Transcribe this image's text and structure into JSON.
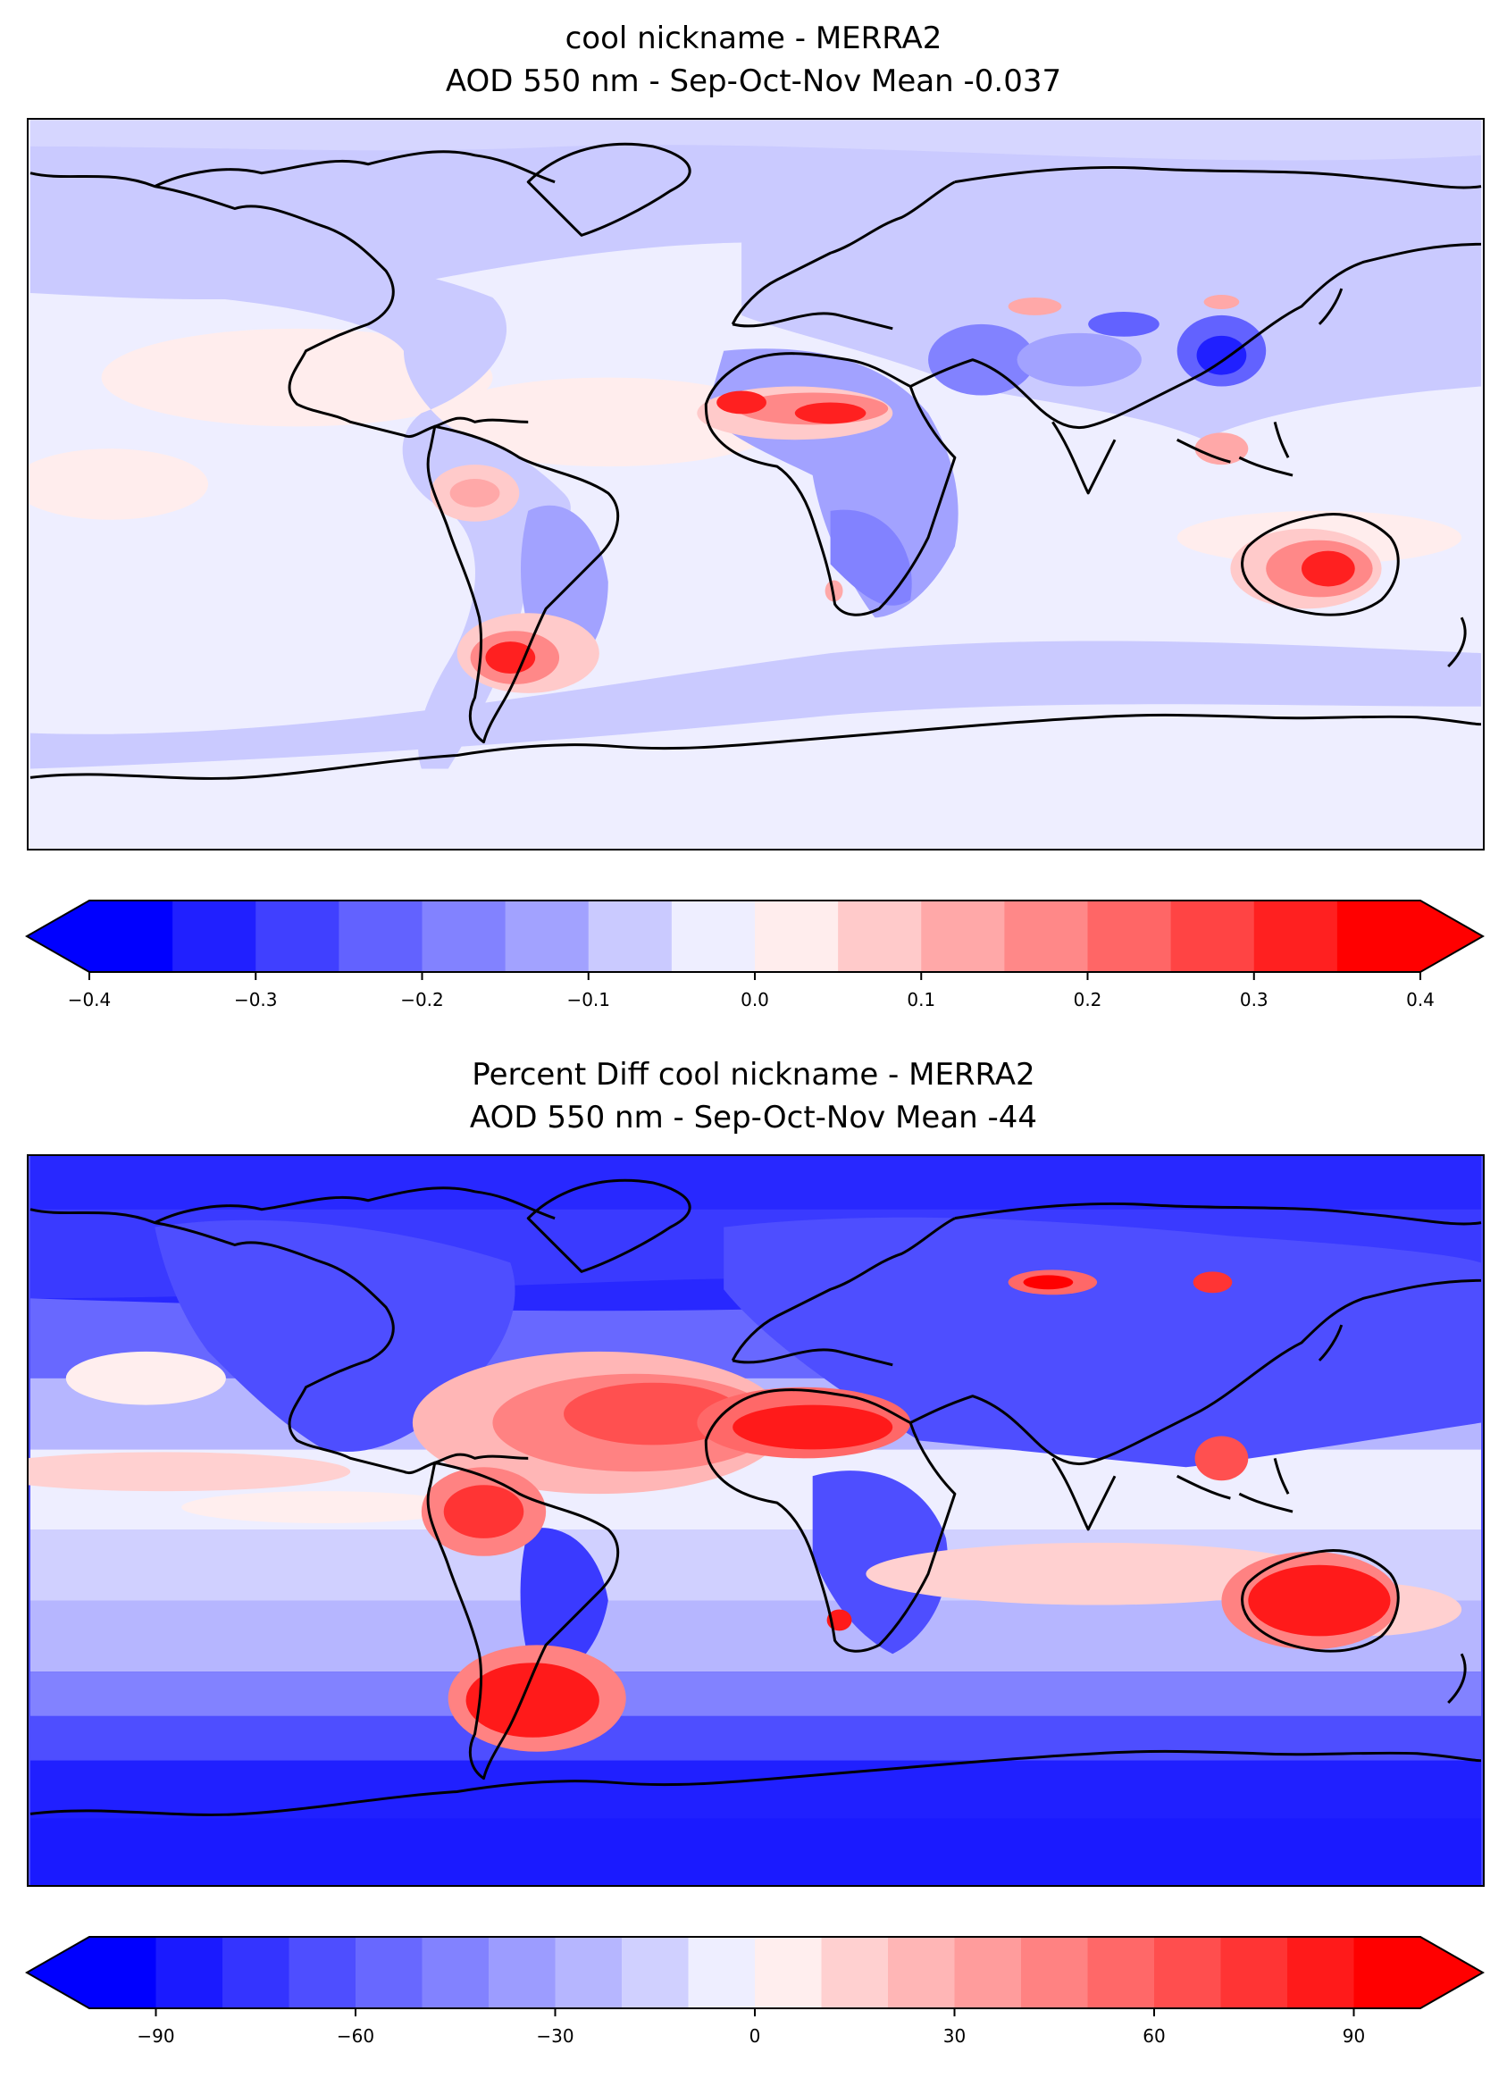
{
  "panels": [
    {
      "title_line1": "cool nickname - MERRA2",
      "title_line2": "AOD 550 nm - Sep-Oct-Nov  Mean -0.037"
    },
    {
      "title_line1": "Percent Diff cool nickname - MERRA2",
      "title_line2": "AOD 550 nm - Sep-Oct-Nov  Mean -44"
    }
  ],
  "chart_data": [
    {
      "type": "heatmap",
      "title": "cool nickname - MERRA2\nAOD 550 nm - Sep-Oct-Nov  Mean -0.037",
      "variable": "AOD 550 nm difference",
      "season": "Sep-Oct-Nov",
      "mean": -0.037,
      "colormap": "bwr",
      "colorbar": {
        "levels": [
          -0.4,
          -0.35,
          -0.3,
          -0.25,
          -0.2,
          -0.15,
          -0.1,
          -0.05,
          0.0,
          0.05,
          0.1,
          0.15,
          0.2,
          0.25,
          0.3,
          0.35,
          0.4
        ],
        "ticks": [
          -0.4,
          -0.3,
          -0.2,
          -0.1,
          0.0,
          0.1,
          0.2,
          0.3,
          0.4
        ],
        "tick_labels": [
          "−0.4",
          "−0.3",
          "−0.2",
          "−0.1",
          "0.0",
          "0.1",
          "0.2",
          "0.3",
          "0.4"
        ],
        "colors": [
          "#0000ff",
          "#2020ff",
          "#4040ff",
          "#6262ff",
          "#8282ff",
          "#a2a2ff",
          "#cacaff",
          "#eeeeff",
          "#ffeded",
          "#ffcaca",
          "#ffa8a8",
          "#ff8888",
          "#ff6666",
          "#ff4444",
          "#ff2020",
          "#ff0000"
        ],
        "extend": "both"
      }
    },
    {
      "type": "heatmap",
      "title": "Percent Diff cool nickname - MERRA2\nAOD 550 nm - Sep-Oct-Nov  Mean -44",
      "variable": "AOD 550 nm percent difference",
      "season": "Sep-Oct-Nov",
      "mean": -44,
      "colormap": "bwr",
      "colorbar": {
        "levels": [
          -100,
          -90,
          -80,
          -70,
          -60,
          -50,
          -40,
          -30,
          -20,
          -10,
          0,
          10,
          20,
          30,
          40,
          50,
          60,
          70,
          80,
          90,
          100
        ],
        "ticks": [
          -90,
          -60,
          -30,
          0,
          30,
          60,
          90
        ],
        "tick_labels": [
          "−90",
          "−60",
          "−30",
          "0",
          "30",
          "60",
          "90"
        ],
        "colors": [
          "#0000ff",
          "#1a1aff",
          "#3434ff",
          "#4e4eff",
          "#6868ff",
          "#8282ff",
          "#9c9cff",
          "#b6b6ff",
          "#d0d0ff",
          "#eeeeff",
          "#ffeeee",
          "#ffd0d0",
          "#ffb6b6",
          "#ff9c9c",
          "#ff8282",
          "#ff6868",
          "#ff4e4e",
          "#ff3434",
          "#ff1a1a",
          "#ff0000"
        ],
        "extend": "both"
      }
    }
  ]
}
